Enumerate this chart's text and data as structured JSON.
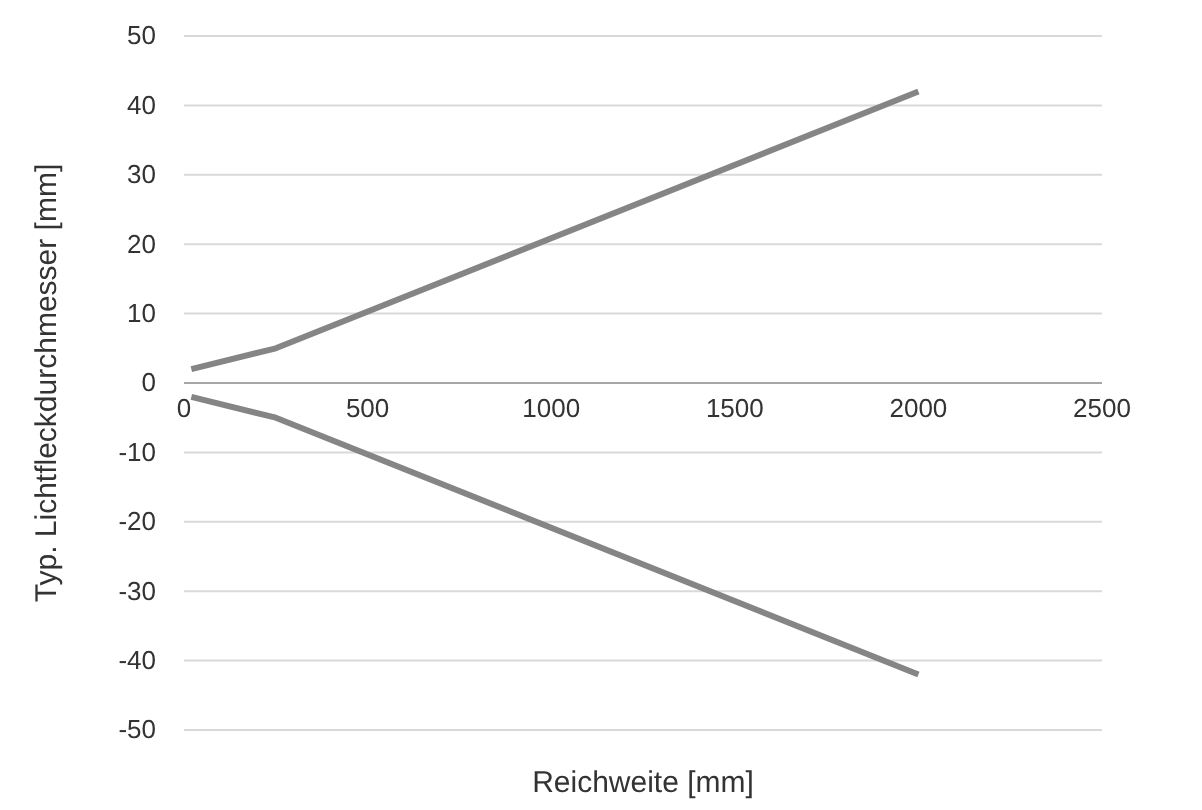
{
  "chart_data": {
    "type": "line",
    "xlabel": "Reichweite [mm]",
    "ylabel": "Typ. Lichtfleckdurchmesser [mm]",
    "xlim": [
      0,
      2500
    ],
    "xticks": [
      0,
      500,
      1000,
      1500,
      2000,
      2500
    ],
    "ylim": [
      -50,
      50
    ],
    "yticks": [
      -50,
      -40,
      -30,
      -20,
      -10,
      0,
      10,
      20,
      30,
      40,
      50
    ],
    "grid": "y",
    "marker": "none",
    "line_style": "solid",
    "series": [
      {
        "color": "#858585",
        "x": [
          20,
          250,
          2000
        ],
        "values": [
          2,
          5,
          42
        ]
      },
      {
        "color": "#858585",
        "x": [
          20,
          250,
          2000
        ],
        "values": [
          -2,
          -5,
          -42
        ]
      }
    ]
  }
}
